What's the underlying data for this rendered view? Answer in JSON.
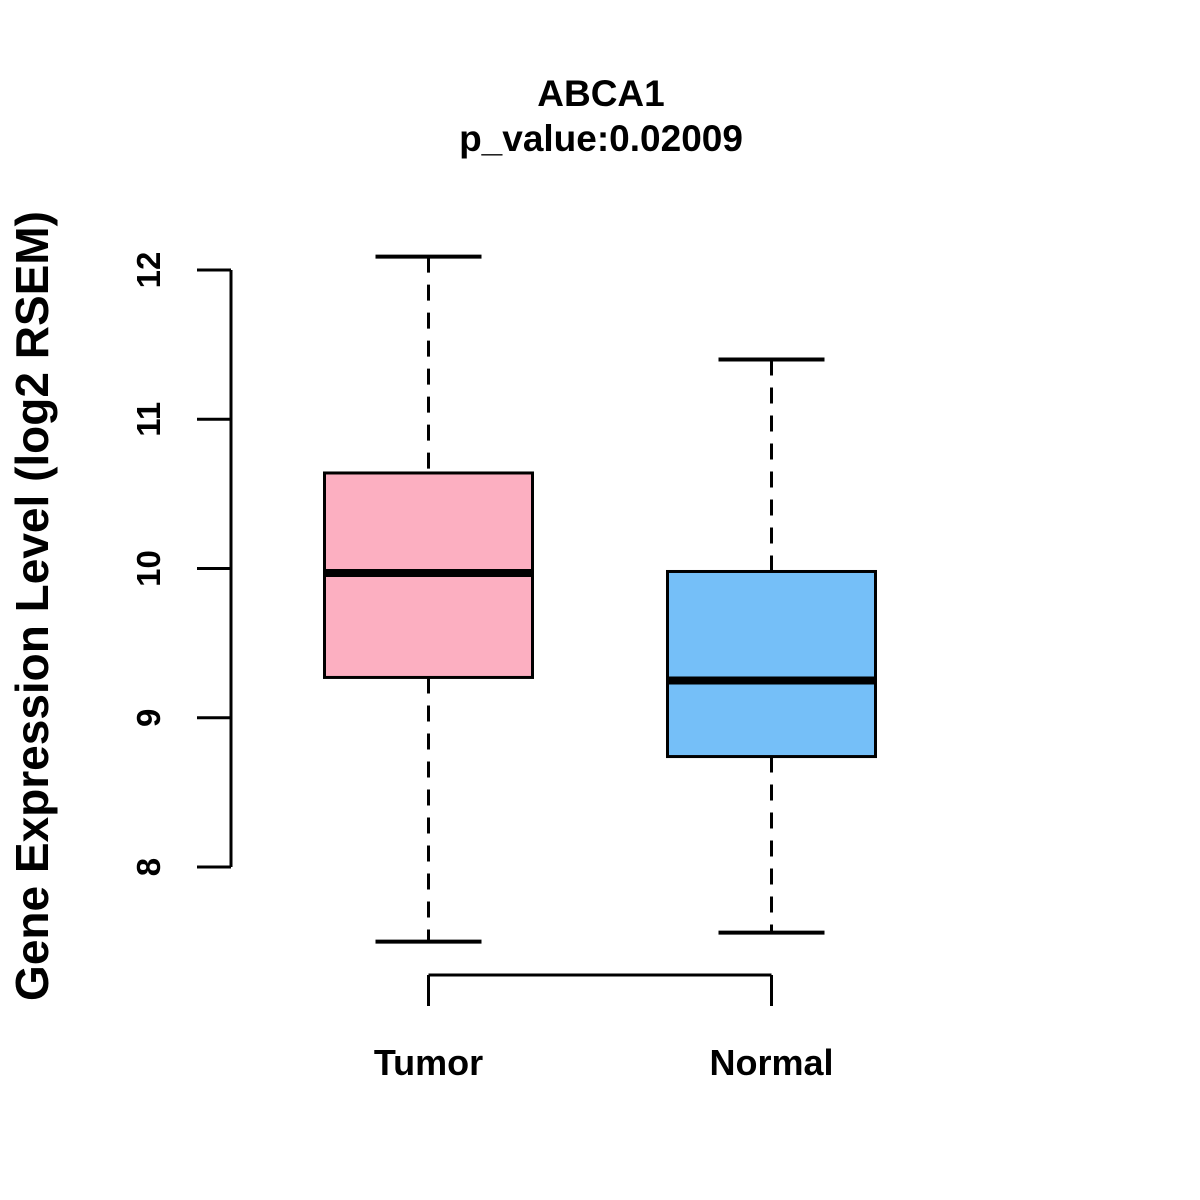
{
  "chart_data": {
    "type": "boxplot",
    "title": "ABCA1",
    "subtitle": "p_value:0.02009",
    "ylabel": "Gene Expression Level (log2 RSEM)",
    "xlabel": "",
    "categories": [
      "Tumor",
      "Normal"
    ],
    "yticks": [
      8,
      9,
      10,
      11,
      12
    ],
    "ylim": [
      7.4,
      12.2
    ],
    "grid": false,
    "legend": "none",
    "series": [
      {
        "name": "Tumor",
        "fill_color": "#FCAFC1",
        "stroke_color": "#000000",
        "lower_whisker": 7.5,
        "q1": 9.27,
        "median": 9.97,
        "q3": 10.64,
        "upper_whisker": 12.09
      },
      {
        "name": "Normal",
        "fill_color": "#75BFF8",
        "stroke_color": "#000000",
        "lower_whisker": 7.56,
        "q1": 8.74,
        "median": 9.25,
        "q3": 9.98,
        "upper_whisker": 11.4
      }
    ]
  },
  "colors": {
    "background": "#FFFFFF",
    "axis": "#000000",
    "text": "#000000"
  }
}
